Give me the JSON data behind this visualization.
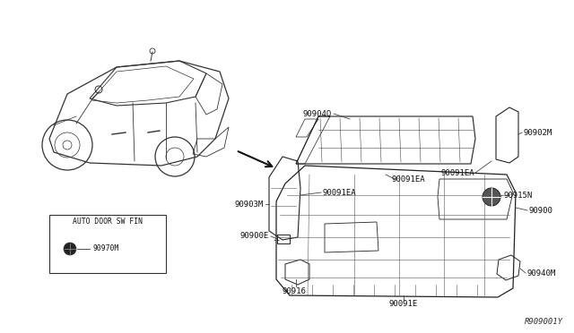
{
  "background_color": "#ffffff",
  "diagram_id": "R909001Y",
  "box_label": "AUTO DOOR SW FIN",
  "box_part": "90970M",
  "label_font": 6.5,
  "line_color": "#222222",
  "car_color": "#333333"
}
